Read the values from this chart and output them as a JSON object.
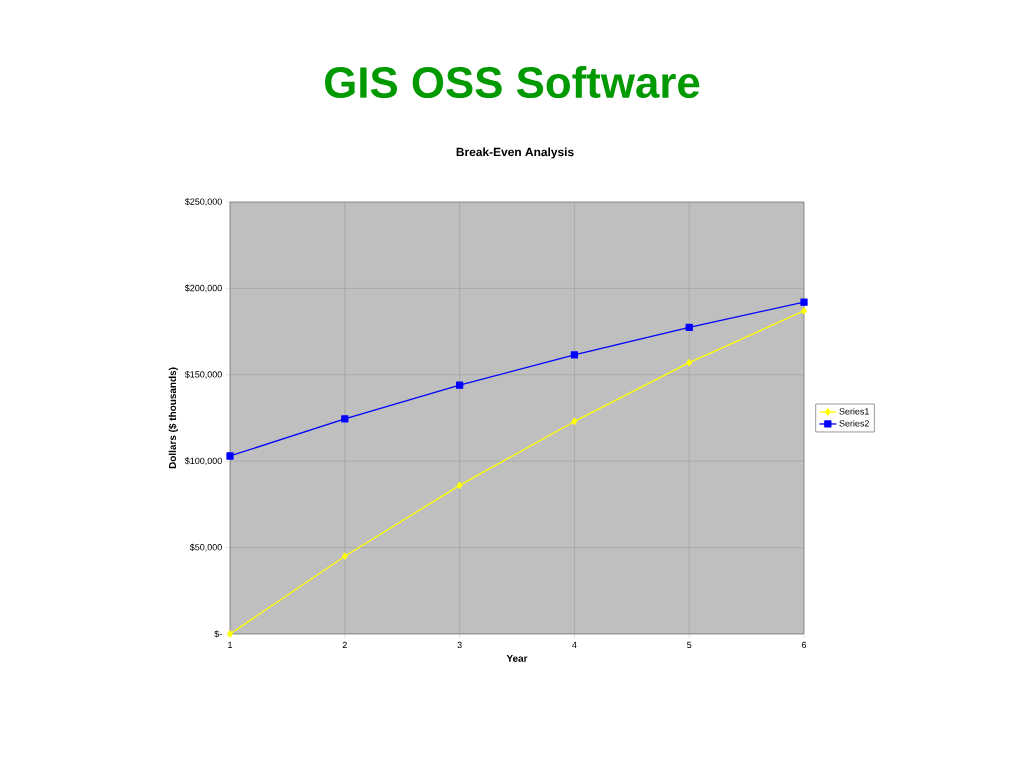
{
  "chart_data": {
    "type": "line",
    "title": "GIS OSS Software",
    "subtitle": "Break-Even Analysis",
    "xlabel": "Year",
    "ylabel": "Dollars ($ thousands)",
    "x": [
      1,
      2,
      3,
      4,
      5,
      6
    ],
    "series": [
      {
        "name": "Series1",
        "color": "#ffff00",
        "marker": "diamond",
        "values": [
          0,
          45000,
          86000,
          123000,
          157000,
          187000
        ]
      },
      {
        "name": "Series2",
        "color": "#0000ff",
        "marker": "square",
        "values": [
          103000,
          124500,
          144000,
          161500,
          177500,
          192000
        ]
      }
    ],
    "xlim": [
      1,
      6
    ],
    "xticks": [
      1,
      2,
      3,
      4,
      5,
      6
    ],
    "ylim": [
      0,
      250000
    ],
    "yticks": [
      {
        "value": 0,
        "label": "$-"
      },
      {
        "value": 50000,
        "label": "$50,000"
      },
      {
        "value": 100000,
        "label": "$100,000"
      },
      {
        "value": 150000,
        "label": "$150,000"
      },
      {
        "value": 200000,
        "label": "$200,000"
      },
      {
        "value": 250000,
        "label": "$250,000"
      }
    ],
    "grid": true,
    "legend": "right",
    "line_style": "solid"
  }
}
